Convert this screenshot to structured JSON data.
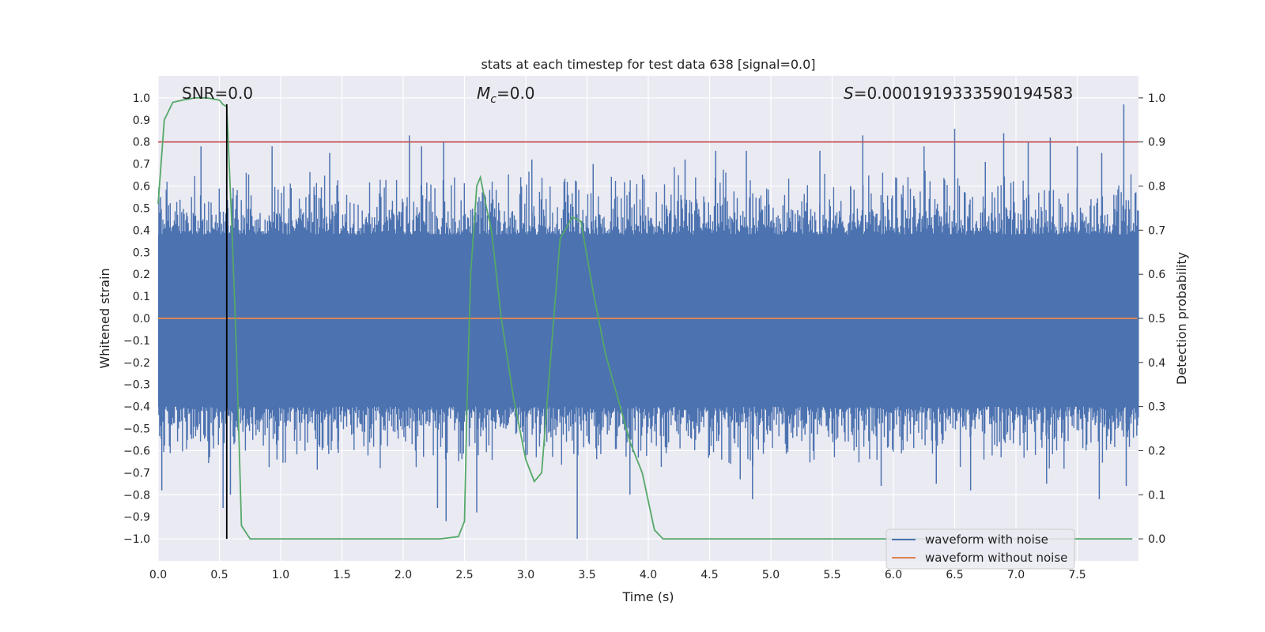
{
  "chart_data": {
    "type": "line",
    "title": "stats at each timestep for test data 638 [signal=0.0]",
    "xlabel": "Time (s)",
    "ylabel_left": "Whitened strain",
    "ylabel_right": "Detection probability",
    "xlim": [
      0.0,
      8.0
    ],
    "ylim_left": [
      -1.1,
      1.1
    ],
    "ylim_right": [
      -0.05,
      1.05
    ],
    "x_ticks": [
      0.0,
      0.5,
      1.0,
      1.5,
      2.0,
      2.5,
      3.0,
      3.5,
      4.0,
      4.5,
      5.0,
      5.5,
      6.0,
      6.5,
      7.0,
      7.5
    ],
    "x_tick_labels": [
      "0.0",
      "0.5",
      "1.0",
      "1.5",
      "2.0",
      "2.5",
      "3.0",
      "3.5",
      "4.0",
      "4.5",
      "5.0",
      "5.5",
      "6.0",
      "6.5",
      "7.0",
      "7.5"
    ],
    "y_ticks_left": [
      1.0,
      0.9,
      0.8,
      0.7,
      0.6,
      0.5,
      0.4,
      0.3,
      0.2,
      0.1,
      0.0,
      -0.1,
      -0.2,
      -0.3,
      -0.4,
      -0.5,
      -0.6,
      -0.7,
      -0.8,
      -0.9,
      -1.0
    ],
    "y_tick_labels_left": [
      "1.0",
      "0.9",
      "0.8",
      "0.7",
      "0.6",
      "0.5",
      "0.4",
      "0.3",
      "0.2",
      "0.1",
      "0.0",
      "−0.1",
      "−0.2",
      "−0.3",
      "−0.4",
      "−0.5",
      "−0.6",
      "−0.7",
      "−0.8",
      "−0.9",
      "−1.0"
    ],
    "y_ticks_right": [
      1.0,
      0.9,
      0.8,
      0.7,
      0.6,
      0.5,
      0.4,
      0.3,
      0.2,
      0.1,
      0.0
    ],
    "y_tick_labels_right": [
      "1.0",
      "0.9",
      "0.8",
      "0.7",
      "0.6",
      "0.5",
      "0.4",
      "0.3",
      "0.2",
      "0.1",
      "0.0"
    ],
    "annotations": {
      "snr": "SNR=0.0",
      "mc_symbol": "M",
      "mc_sub": "c",
      "mc_value": "=0.0",
      "s_symbol": "S",
      "s_value": "=0.0001919333590194583"
    },
    "noise_series": {
      "name": "waveform with noise",
      "color": "#4c72b0",
      "band_low": -0.4,
      "band_high": 0.38,
      "note": "dense noisy strain oscillating mostly within about ±0.4 with spikes up to ~0.97 and down to ~-1.0",
      "spikes": [
        {
          "x": 0.02,
          "y": 0.55
        },
        {
          "x": 0.03,
          "y": -0.78
        },
        {
          "x": 0.35,
          "y": 0.78
        },
        {
          "x": 0.42,
          "y": -0.63
        },
        {
          "x": 0.53,
          "y": -0.86
        },
        {
          "x": 0.57,
          "y": 0.5
        },
        {
          "x": 0.59,
          "y": -0.8
        },
        {
          "x": 0.93,
          "y": 0.78
        },
        {
          "x": 0.97,
          "y": -0.64
        },
        {
          "x": 1.4,
          "y": 0.75
        },
        {
          "x": 1.47,
          "y": -0.61
        },
        {
          "x": 2.05,
          "y": 0.83
        },
        {
          "x": 2.1,
          "y": -0.6
        },
        {
          "x": 2.15,
          "y": 0.78
        },
        {
          "x": 2.28,
          "y": -0.86
        },
        {
          "x": 2.33,
          "y": 0.8
        },
        {
          "x": 2.35,
          "y": -0.92
        },
        {
          "x": 2.6,
          "y": -0.88
        },
        {
          "x": 3.05,
          "y": 0.72
        },
        {
          "x": 3.42,
          "y": -1.0
        },
        {
          "x": 3.55,
          "y": 0.7
        },
        {
          "x": 3.85,
          "y": -0.8
        },
        {
          "x": 4.3,
          "y": 0.72
        },
        {
          "x": 4.55,
          "y": 0.76
        },
        {
          "x": 4.75,
          "y": -0.73
        },
        {
          "x": 4.8,
          "y": 0.76
        },
        {
          "x": 4.85,
          "y": -0.82
        },
        {
          "x": 5.4,
          "y": 0.76
        },
        {
          "x": 5.65,
          "y": 0.6
        },
        {
          "x": 5.75,
          "y": 0.83
        },
        {
          "x": 5.9,
          "y": -0.76
        },
        {
          "x": 6.25,
          "y": 0.78
        },
        {
          "x": 6.35,
          "y": -0.75
        },
        {
          "x": 6.5,
          "y": 0.86
        },
        {
          "x": 6.63,
          "y": -0.78
        },
        {
          "x": 6.75,
          "y": 0.71
        },
        {
          "x": 6.9,
          "y": 0.84
        },
        {
          "x": 7.1,
          "y": 0.8
        },
        {
          "x": 7.25,
          "y": -0.75
        },
        {
          "x": 7.28,
          "y": 0.82
        },
        {
          "x": 7.5,
          "y": 0.78
        },
        {
          "x": 7.68,
          "y": -0.82
        },
        {
          "x": 7.7,
          "y": 0.75
        },
        {
          "x": 7.88,
          "y": 0.97
        },
        {
          "x": 7.9,
          "y": -0.76
        }
      ]
    },
    "clean_series": {
      "name": "waveform without noise",
      "color": "#dd8452",
      "y": 0.0
    },
    "probability_series": {
      "name": "detection probability",
      "color": "#55a868",
      "axis": "right",
      "x": [
        0.0,
        0.05,
        0.12,
        0.2,
        0.3,
        0.4,
        0.5,
        0.53,
        0.56,
        0.6,
        0.64,
        0.68,
        0.75,
        1.0,
        1.5,
        2.0,
        2.3,
        2.45,
        2.5,
        2.52,
        2.55,
        2.6,
        2.63,
        2.68,
        2.72,
        2.8,
        2.9,
        3.0,
        3.07,
        3.13,
        3.2,
        3.28,
        3.38,
        3.45,
        3.55,
        3.65,
        3.75,
        3.85,
        3.95,
        4.05,
        4.12,
        4.3,
        5.0,
        6.0,
        7.0,
        7.95
      ],
      "y": [
        0.76,
        0.95,
        0.99,
        0.995,
        1.0,
        1.0,
        0.995,
        0.985,
        0.98,
        0.72,
        0.42,
        0.03,
        0.0,
        0.0,
        0.0,
        0.0,
        0.0,
        0.005,
        0.04,
        0.3,
        0.6,
        0.8,
        0.82,
        0.75,
        0.7,
        0.5,
        0.32,
        0.18,
        0.13,
        0.15,
        0.4,
        0.68,
        0.73,
        0.72,
        0.56,
        0.42,
        0.32,
        0.22,
        0.15,
        0.02,
        0.0,
        0.0,
        0.0,
        0.0,
        0.0,
        0.0
      ]
    },
    "threshold_line": {
      "color": "#c44e52",
      "value_right_axis": 0.9
    },
    "marker_line": {
      "color": "#000000",
      "x": 0.56,
      "y_from": -1.0,
      "y_to": 1.0
    },
    "legend": {
      "placement": "lower-right",
      "entries": [
        {
          "label": "waveform with noise",
          "color": "#4c72b0"
        },
        {
          "label": "waveform without noise",
          "color": "#dd8452"
        }
      ]
    },
    "grid": true
  }
}
